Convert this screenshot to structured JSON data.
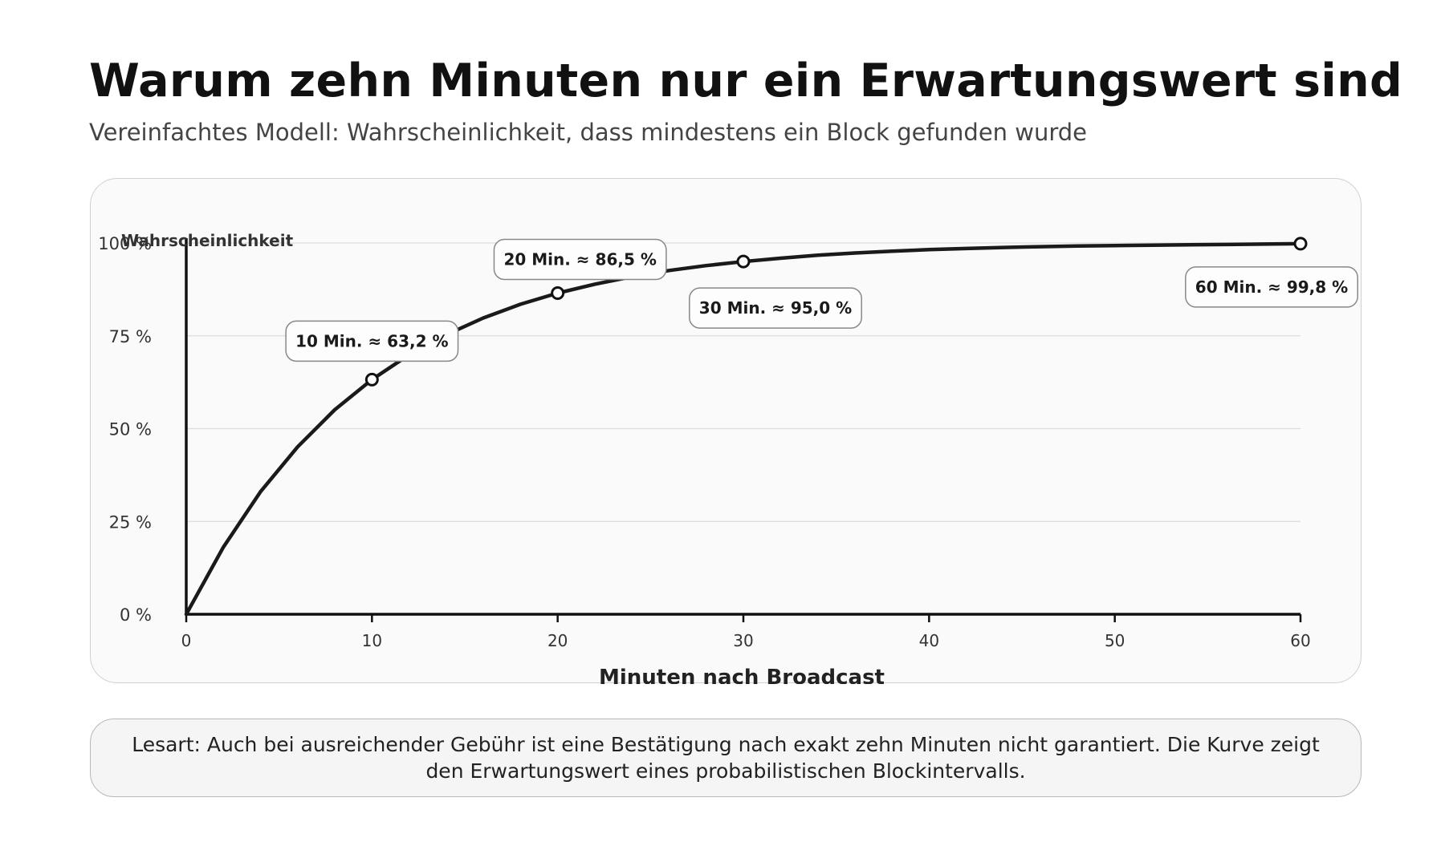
{
  "header": {
    "title": "Warum zehn Minuten nur ein Erwartungswert sind",
    "subtitle": "Vereinfachtes Modell: Wahrscheinlichkeit, dass mindestens ein Block gefunden wurde"
  },
  "chart_data": {
    "type": "line",
    "xlabel": "Minuten nach Broadcast",
    "ylabel": "Wahrscheinlichkeit",
    "xlim": [
      0,
      60
    ],
    "ylim": [
      0,
      100
    ],
    "x_ticks": [
      0,
      10,
      20,
      30,
      40,
      50,
      60
    ],
    "y_ticks": [
      0,
      25,
      50,
      75,
      100
    ],
    "y_tick_labels": [
      "0 %",
      "25 %",
      "50 %",
      "75 %",
      "100 %"
    ],
    "grid": "horizontal",
    "curve": {
      "model": "1 - exp(-t/10)",
      "x": [
        0,
        2,
        4,
        6,
        8,
        10,
        12,
        14,
        16,
        18,
        20,
        22,
        24,
        26,
        28,
        30,
        32,
        34,
        36,
        38,
        40,
        42,
        44,
        46,
        48,
        50,
        52,
        54,
        56,
        58,
        60
      ],
      "y": [
        0,
        18.1,
        33.0,
        45.1,
        55.1,
        63.2,
        69.9,
        75.3,
        79.8,
        83.5,
        86.5,
        88.9,
        90.9,
        92.6,
        93.9,
        95.0,
        95.9,
        96.7,
        97.3,
        97.8,
        98.2,
        98.5,
        98.8,
        99.0,
        99.2,
        99.3,
        99.4,
        99.5,
        99.6,
        99.7,
        99.8
      ]
    },
    "markers": [
      {
        "x": 10,
        "y": 63.2,
        "label": "10 Min. ≈ 63,2 %"
      },
      {
        "x": 20,
        "y": 86.5,
        "label": "20 Min. ≈ 86,5 %"
      },
      {
        "x": 30,
        "y": 95.0,
        "label": "30 Min. ≈ 95,0 %"
      },
      {
        "x": 60,
        "y": 99.8,
        "label": "60 Min. ≈ 99,8 %"
      }
    ]
  },
  "note": {
    "text": "Lesart: Auch bei ausreichender Gebühr ist eine Bestätigung nach exakt zehn Minuten nicht garantiert. Die Kurve zeigt den Erwartungswert eines probabilistischen Blockintervalls."
  }
}
